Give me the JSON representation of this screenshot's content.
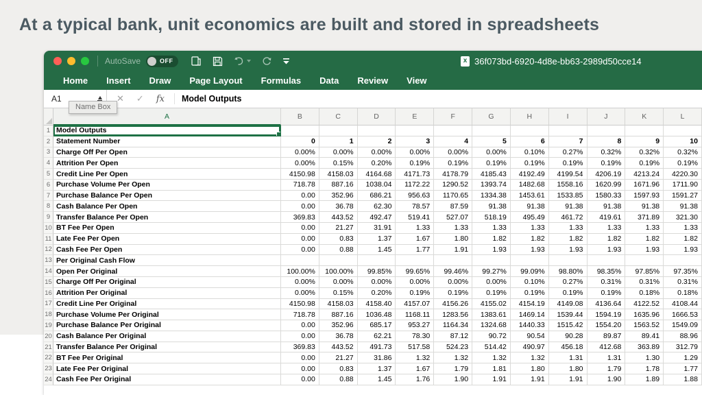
{
  "slide": {
    "title": "At a typical bank, unit economics are built and stored in spreadsheets"
  },
  "colors": {
    "excel_green": "#256b45",
    "selection_green": "#1e7145",
    "slide_background": "#f0efed",
    "traffic_red": "#ff5f57",
    "traffic_yellow": "#febc2e",
    "traffic_green": "#28c840"
  },
  "window": {
    "titlebar": {
      "autosave_label": "AutoSave",
      "autosave_state": "OFF",
      "document_title": "36f073bd-6920-4d8e-bb63-2989d50cce14",
      "file_icon_letter": "x"
    },
    "ribbon_tabs": [
      {
        "id": "home",
        "label": "Home",
        "active": true
      },
      {
        "id": "insert",
        "label": "Insert",
        "active": false
      },
      {
        "id": "draw",
        "label": "Draw",
        "active": false
      },
      {
        "id": "page-layout",
        "label": "Page Layout",
        "active": false
      },
      {
        "id": "formulas",
        "label": "Formulas",
        "active": false
      },
      {
        "id": "data",
        "label": "Data",
        "active": false
      },
      {
        "id": "review",
        "label": "Review",
        "active": false
      },
      {
        "id": "view",
        "label": "View",
        "active": false
      }
    ],
    "formula_bar": {
      "cell_reference": "A1",
      "tooltip": "Name Box",
      "cancel_glyph": "✕",
      "confirm_glyph": "✓",
      "fx_label": "fx",
      "content": "Model Outputs"
    }
  },
  "sheet": {
    "selected_cell": "A1",
    "column_headers": [
      "A",
      "B",
      "C",
      "D",
      "E",
      "F",
      "G",
      "H",
      "I",
      "J",
      "K",
      "L"
    ],
    "rows": [
      {
        "n": 1,
        "label": "Model Outputs",
        "bold": true,
        "selected": true,
        "values": [
          "",
          "",
          "",
          "",
          "",
          "",
          "",
          "",
          "",
          "",
          ""
        ]
      },
      {
        "n": 2,
        "label": "Statement Number",
        "bold": true,
        "values": [
          "0",
          "1",
          "2",
          "3",
          "4",
          "5",
          "6",
          "7",
          "8",
          "9",
          "10"
        ]
      },
      {
        "n": 3,
        "label": "Charge Off Per Open",
        "values": [
          "0.00%",
          "0.00%",
          "0.00%",
          "0.00%",
          "0.00%",
          "0.00%",
          "0.10%",
          "0.27%",
          "0.32%",
          "0.32%",
          "0.32%"
        ]
      },
      {
        "n": 4,
        "label": "Attrition Per Open",
        "values": [
          "0.00%",
          "0.15%",
          "0.20%",
          "0.19%",
          "0.19%",
          "0.19%",
          "0.19%",
          "0.19%",
          "0.19%",
          "0.19%",
          "0.19%"
        ]
      },
      {
        "n": 5,
        "label": "Credit Line Per Open",
        "values": [
          "4150.98",
          "4158.03",
          "4164.68",
          "4171.73",
          "4178.79",
          "4185.43",
          "4192.49",
          "4199.54",
          "4206.19",
          "4213.24",
          "4220.30"
        ]
      },
      {
        "n": 6,
        "label": "Purchase Volume Per Open",
        "values": [
          "718.78",
          "887.16",
          "1038.04",
          "1172.22",
          "1290.52",
          "1393.74",
          "1482.68",
          "1558.16",
          "1620.99",
          "1671.96",
          "1711.90"
        ]
      },
      {
        "n": 7,
        "label": "Purchase Balance Per Open",
        "values": [
          "0.00",
          "352.96",
          "686.21",
          "956.63",
          "1170.65",
          "1334.38",
          "1453.61",
          "1533.85",
          "1580.33",
          "1597.93",
          "1591.27"
        ]
      },
      {
        "n": 8,
        "label": "Cash Balance Per Open",
        "values": [
          "0.00",
          "36.78",
          "62.30",
          "78.57",
          "87.59",
          "91.38",
          "91.38",
          "91.38",
          "91.38",
          "91.38",
          "91.38"
        ]
      },
      {
        "n": 9,
        "label": "Transfer Balance Per Open",
        "values": [
          "369.83",
          "443.52",
          "492.47",
          "519.41",
          "527.07",
          "518.19",
          "495.49",
          "461.72",
          "419.61",
          "371.89",
          "321.30"
        ]
      },
      {
        "n": 10,
        "label": "BT Fee Per Open",
        "values": [
          "0.00",
          "21.27",
          "31.91",
          "1.33",
          "1.33",
          "1.33",
          "1.33",
          "1.33",
          "1.33",
          "1.33",
          "1.33"
        ]
      },
      {
        "n": 11,
        "label": "Late Fee Per Open",
        "values": [
          "0.00",
          "0.83",
          "1.37",
          "1.67",
          "1.80",
          "1.82",
          "1.82",
          "1.82",
          "1.82",
          "1.82",
          "1.82"
        ]
      },
      {
        "n": 12,
        "label": "Cash Fee Per Open",
        "values": [
          "0.00",
          "0.88",
          "1.45",
          "1.77",
          "1.91",
          "1.93",
          "1.93",
          "1.93",
          "1.93",
          "1.93",
          "1.93"
        ]
      },
      {
        "n": 13,
        "label": "Per Original Cash Flow",
        "bold": true,
        "values": [
          "",
          "",
          "",
          "",
          "",
          "",
          "",
          "",
          "",
          "",
          ""
        ]
      },
      {
        "n": 14,
        "label": "Open Per Original",
        "values": [
          "100.00%",
          "100.00%",
          "99.85%",
          "99.65%",
          "99.46%",
          "99.27%",
          "99.09%",
          "98.80%",
          "98.35%",
          "97.85%",
          "97.35%"
        ]
      },
      {
        "n": 15,
        "label": "Charge Off Per Original",
        "values": [
          "0.00%",
          "0.00%",
          "0.00%",
          "0.00%",
          "0.00%",
          "0.00%",
          "0.10%",
          "0.27%",
          "0.31%",
          "0.31%",
          "0.31%"
        ]
      },
      {
        "n": 16,
        "label": "Attrition Per Original",
        "values": [
          "0.00%",
          "0.15%",
          "0.20%",
          "0.19%",
          "0.19%",
          "0.19%",
          "0.19%",
          "0.19%",
          "0.19%",
          "0.18%",
          "0.18%"
        ]
      },
      {
        "n": 17,
        "label": "Credit Line Per Original",
        "values": [
          "4150.98",
          "4158.03",
          "4158.40",
          "4157.07",
          "4156.26",
          "4155.02",
          "4154.19",
          "4149.08",
          "4136.64",
          "4122.52",
          "4108.44"
        ]
      },
      {
        "n": 18,
        "label": "Purchase Volume Per Original",
        "values": [
          "718.78",
          "887.16",
          "1036.48",
          "1168.11",
          "1283.56",
          "1383.61",
          "1469.14",
          "1539.44",
          "1594.19",
          "1635.96",
          "1666.53"
        ]
      },
      {
        "n": 19,
        "label": "Purchase Balance Per Original",
        "values": [
          "0.00",
          "352.96",
          "685.17",
          "953.27",
          "1164.34",
          "1324.68",
          "1440.33",
          "1515.42",
          "1554.20",
          "1563.52",
          "1549.09"
        ]
      },
      {
        "n": 20,
        "label": "Cash Balance Per Original",
        "values": [
          "0.00",
          "36.78",
          "62.21",
          "78.30",
          "87.12",
          "90.72",
          "90.54",
          "90.28",
          "89.87",
          "89.41",
          "88.96"
        ]
      },
      {
        "n": 21,
        "label": "Transfer Balance Per Original",
        "values": [
          "369.83",
          "443.52",
          "491.73",
          "517.58",
          "524.23",
          "514.42",
          "490.97",
          "456.18",
          "412.68",
          "363.89",
          "312.79"
        ]
      },
      {
        "n": 22,
        "label": "BT Fee Per Original",
        "values": [
          "0.00",
          "21.27",
          "31.86",
          "1.32",
          "1.32",
          "1.32",
          "1.32",
          "1.31",
          "1.31",
          "1.30",
          "1.29"
        ]
      },
      {
        "n": 23,
        "label": "Late Fee Per Original",
        "values": [
          "0.00",
          "0.83",
          "1.37",
          "1.67",
          "1.79",
          "1.81",
          "1.80",
          "1.80",
          "1.79",
          "1.78",
          "1.77"
        ]
      },
      {
        "n": 24,
        "label": "Cash Fee Per Original",
        "values": [
          "0.00",
          "0.88",
          "1.45",
          "1.76",
          "1.90",
          "1.91",
          "1.91",
          "1.91",
          "1.90",
          "1.89",
          "1.88"
        ]
      }
    ]
  }
}
